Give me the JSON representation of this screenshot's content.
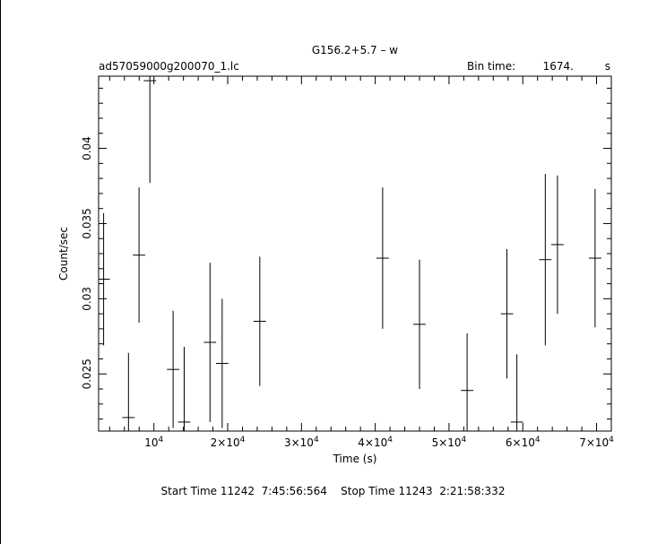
{
  "header": {
    "title": "G156.2+5.7  –  w",
    "filename": "ad57059000g200070_1.lc",
    "bin_time_label": "Bin time:",
    "bin_time_value": "1674.",
    "bin_time_unit": "s"
  },
  "footer": {
    "start_label": "Start Time",
    "start_value": "11242  7:45:56:564",
    "stop_label": "Stop Time",
    "stop_value": "11243  2:21:58:332"
  },
  "chart_data": {
    "type": "scatter",
    "xlabel": "Time (s)",
    "ylabel": "Count/sec",
    "xlim": [
      2500,
      72000
    ],
    "ylim": [
      0.0212,
      0.0448
    ],
    "x_ticks": [
      {
        "value": 10000,
        "mantissa": "",
        "exp": "4"
      },
      {
        "value": 20000,
        "mantissa": "2×",
        "exp": "4"
      },
      {
        "value": 30000,
        "mantissa": "3×",
        "exp": "4"
      },
      {
        "value": 40000,
        "mantissa": "4×",
        "exp": "4"
      },
      {
        "value": 50000,
        "mantissa": "5×",
        "exp": "4"
      },
      {
        "value": 60000,
        "mantissa": "6×",
        "exp": "4"
      },
      {
        "value": 70000,
        "mantissa": "7×",
        "exp": "4"
      }
    ],
    "y_ticks": [
      {
        "value": 0.025,
        "label": "0.025"
      },
      {
        "value": 0.03,
        "label": "0.03"
      },
      {
        "value": 0.035,
        "label": "0.035"
      },
      {
        "value": 0.04,
        "label": "0.04"
      }
    ],
    "points": [
      {
        "x": 3180,
        "xerr": 837,
        "y": 0.0313,
        "yerr": 0.0044
      },
      {
        "x": 6550,
        "xerr": 837,
        "y": 0.0221,
        "yerr": 0.0043
      },
      {
        "x": 7980,
        "xerr": 837,
        "y": 0.0329,
        "yerr": 0.0045
      },
      {
        "x": 9450,
        "xerr": 837,
        "y": 0.0445,
        "yerr": 0.0068
      },
      {
        "x": 12600,
        "xerr": 837,
        "y": 0.0253,
        "yerr": 0.0039
      },
      {
        "x": 14100,
        "xerr": 837,
        "y": 0.0218,
        "yerr": 0.005
      },
      {
        "x": 17600,
        "xerr": 837,
        "y": 0.0271,
        "yerr": 0.0053
      },
      {
        "x": 19250,
        "xerr": 837,
        "y": 0.0257,
        "yerr": 0.0043
      },
      {
        "x": 24350,
        "xerr": 837,
        "y": 0.0285,
        "yerr": 0.0043
      },
      {
        "x": 41000,
        "xerr": 837,
        "y": 0.0327,
        "yerr": 0.0047
      },
      {
        "x": 46000,
        "xerr": 837,
        "y": 0.0283,
        "yerr": 0.0043
      },
      {
        "x": 52450,
        "xerr": 837,
        "y": 0.0239,
        "yerr": 0.0038
      },
      {
        "x": 57850,
        "xerr": 837,
        "y": 0.029,
        "yerr": 0.0043
      },
      {
        "x": 59200,
        "xerr": 837,
        "y": 0.0218,
        "yerr": 0.0045
      },
      {
        "x": 63050,
        "xerr": 837,
        "y": 0.0326,
        "yerr": 0.0057
      },
      {
        "x": 64700,
        "xerr": 837,
        "y": 0.0336,
        "yerr": 0.0046
      },
      {
        "x": 69800,
        "xerr": 837,
        "y": 0.0327,
        "yerr": 0.0046
      }
    ]
  }
}
